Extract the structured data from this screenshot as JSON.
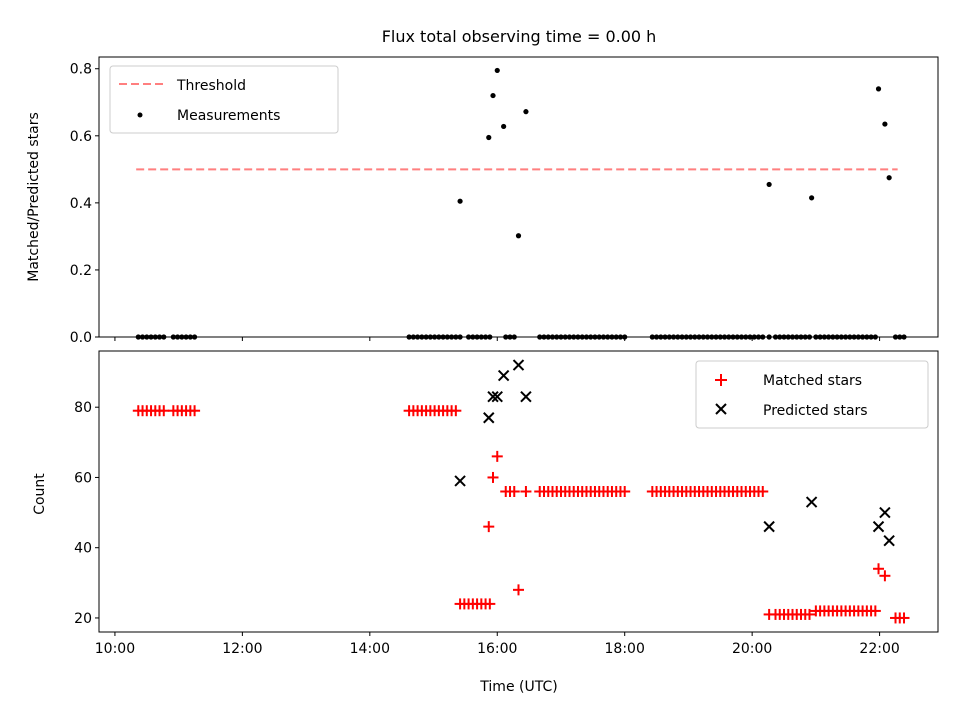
{
  "chart_data": {
    "type": "scatter",
    "title": "Flux total observing time = 0.00 h",
    "xlabel": "Time (UTC)",
    "x_ticks": [
      "10:00",
      "12:00",
      "14:00",
      "16:00",
      "18:00",
      "20:00",
      "22:00"
    ],
    "xlim": [
      "09:45",
      "22:55"
    ],
    "panels": [
      {
        "ylabel": "Matched/Predicted stars",
        "ylim": [
          0,
          0.835
        ],
        "y_ticks": [
          "0.0",
          "0.2",
          "0.4",
          "0.6",
          "0.8"
        ],
        "legend_position": "top-left",
        "series": [
          {
            "name": "Threshold",
            "kind": "line",
            "color": "#ff7f7f",
            "x": [
              "10:20",
              "22:17"
            ],
            "y": [
              0.5,
              0.5
            ]
          },
          {
            "name": "Measurements",
            "kind": "scatter",
            "color": "#000000",
            "x": [
              "10:22",
              "10:26",
              "10:30",
              "10:34",
              "10:38",
              "10:42",
              "10:46",
              "10:55",
              "10:59",
              "11:03",
              "11:07",
              "11:11",
              "11:15",
              "14:37",
              "14:41",
              "14:45",
              "14:49",
              "14:53",
              "14:57",
              "15:01",
              "15:05",
              "15:09",
              "15:13",
              "15:17",
              "15:21",
              "15:25",
              "15:33",
              "15:37",
              "15:41",
              "15:45",
              "15:49",
              "15:53",
              "15:25",
              "15:52",
              "15:56",
              "16:00",
              "16:06",
              "16:20",
              "16:27",
              "16:08",
              "16:12",
              "16:16",
              "16:40",
              "16:44",
              "16:48",
              "16:52",
              "16:56",
              "17:00",
              "17:04",
              "17:08",
              "17:12",
              "17:16",
              "17:20",
              "17:24",
              "17:28",
              "17:32",
              "17:36",
              "17:40",
              "17:44",
              "17:48",
              "17:52",
              "17:56",
              "18:00",
              "18:26",
              "18:30",
              "18:34",
              "18:38",
              "18:42",
              "18:46",
              "18:50",
              "18:54",
              "18:58",
              "19:02",
              "19:06",
              "19:10",
              "19:14",
              "19:18",
              "19:22",
              "19:26",
              "19:30",
              "19:34",
              "19:38",
              "19:42",
              "19:46",
              "19:50",
              "19:54",
              "19:58",
              "20:02",
              "20:06",
              "20:10",
              "20:16",
              "20:22",
              "20:26",
              "20:30",
              "20:34",
              "20:38",
              "20:42",
              "20:46",
              "20:50",
              "20:54",
              "21:00",
              "21:04",
              "21:08",
              "21:12",
              "21:16",
              "21:20",
              "21:24",
              "21:28",
              "21:32",
              "21:36",
              "21:40",
              "21:44",
              "21:48",
              "21:52",
              "21:56",
              "20:16",
              "20:56",
              "21:59",
              "22:05",
              "22:09",
              "22:15",
              "22:19",
              "22:23"
            ],
            "y": [
              0,
              0,
              0,
              0,
              0,
              0,
              0,
              0,
              0,
              0,
              0,
              0,
              0,
              0,
              0,
              0,
              0,
              0,
              0,
              0,
              0,
              0,
              0,
              0,
              0,
              0,
              0,
              0,
              0,
              0,
              0,
              0,
              0.405,
              0.595,
              0.72,
              0.795,
              0.628,
              0.302,
              0.672,
              0,
              0,
              0,
              0,
              0,
              0,
              0,
              0,
              0,
              0,
              0,
              0,
              0,
              0,
              0,
              0,
              0,
              0,
              0,
              0,
              0,
              0,
              0,
              0,
              0,
              0,
              0,
              0,
              0,
              0,
              0,
              0,
              0,
              0,
              0,
              0,
              0,
              0,
              0,
              0,
              0,
              0,
              0,
              0,
              0,
              0,
              0,
              0,
              0,
              0,
              0,
              0,
              0,
              0,
              0,
              0,
              0,
              0,
              0,
              0,
              0,
              0,
              0,
              0,
              0,
              0,
              0,
              0,
              0,
              0,
              0,
              0,
              0,
              0,
              0,
              0,
              0.455,
              0.415,
              0.74,
              0.635,
              0.475,
              0,
              0,
              0
            ]
          }
        ]
      },
      {
        "ylabel": "Count",
        "ylim": [
          16,
          96
        ],
        "y_ticks": [
          "20",
          "40",
          "60",
          "80"
        ],
        "legend_position": "top-right",
        "series": [
          {
            "name": "Matched stars",
            "kind": "plus",
            "color": "#ff0000",
            "x": [
              "10:22",
              "10:26",
              "10:30",
              "10:34",
              "10:38",
              "10:42",
              "10:46",
              "10:55",
              "10:59",
              "11:03",
              "11:07",
              "11:11",
              "11:15",
              "14:37",
              "14:41",
              "14:45",
              "14:49",
              "14:53",
              "14:57",
              "15:01",
              "15:05",
              "15:09",
              "15:13",
              "15:17",
              "15:21",
              "15:25",
              "15:29",
              "15:33",
              "15:37",
              "15:41",
              "15:45",
              "15:49",
              "15:53",
              "15:52",
              "15:56",
              "16:00",
              "16:20",
              "16:08",
              "16:12",
              "16:16",
              "16:27",
              "16:40",
              "16:44",
              "16:48",
              "16:52",
              "16:56",
              "17:00",
              "17:04",
              "17:08",
              "17:12",
              "17:16",
              "17:20",
              "17:24",
              "17:28",
              "17:32",
              "17:36",
              "17:40",
              "17:44",
              "17:48",
              "17:52",
              "17:56",
              "18:00",
              "18:26",
              "18:30",
              "18:34",
              "18:38",
              "18:42",
              "18:46",
              "18:50",
              "18:54",
              "18:58",
              "19:02",
              "19:06",
              "19:10",
              "19:14",
              "19:18",
              "19:22",
              "19:26",
              "19:30",
              "19:34",
              "19:38",
              "19:42",
              "19:46",
              "19:50",
              "19:54",
              "19:58",
              "20:02",
              "20:06",
              "20:10",
              "20:16",
              "20:22",
              "20:26",
              "20:30",
              "20:34",
              "20:38",
              "20:42",
              "20:46",
              "20:50",
              "20:54",
              "21:00",
              "21:04",
              "21:08",
              "21:12",
              "21:16",
              "21:20",
              "21:24",
              "21:28",
              "21:32",
              "21:36",
              "21:40",
              "21:44",
              "21:48",
              "21:52",
              "21:56",
              "21:59",
              "22:05",
              "22:15",
              "22:19",
              "22:23"
            ],
            "y": [
              79,
              79,
              79,
              79,
              79,
              79,
              79,
              79,
              79,
              79,
              79,
              79,
              79,
              79,
              79,
              79,
              79,
              79,
              79,
              79,
              79,
              79,
              79,
              79,
              79,
              24,
              24,
              24,
              24,
              24,
              24,
              24,
              24,
              46,
              60,
              66,
              28,
              56,
              56,
              56,
              56,
              56,
              56,
              56,
              56,
              56,
              56,
              56,
              56,
              56,
              56,
              56,
              56,
              56,
              56,
              56,
              56,
              56,
              56,
              56,
              56,
              56,
              56,
              56,
              56,
              56,
              56,
              56,
              56,
              56,
              56,
              56,
              56,
              56,
              56,
              56,
              56,
              56,
              56,
              56,
              56,
              56,
              56,
              56,
              56,
              56,
              56,
              56,
              56,
              21,
              21,
              21,
              21,
              21,
              21,
              21,
              21,
              21,
              21,
              22,
              22,
              22,
              22,
              22,
              22,
              22,
              22,
              22,
              22,
              22,
              22,
              22,
              22,
              22,
              34,
              32,
              20,
              20,
              20
            ]
          },
          {
            "name": "Predicted stars",
            "kind": "cross",
            "color": "#000000",
            "x": [
              "15:25",
              "15:52",
              "15:56",
              "16:00",
              "16:06",
              "16:20",
              "16:27",
              "20:16",
              "20:56",
              "21:59",
              "22:05",
              "22:09"
            ],
            "y": [
              59,
              77,
              83,
              83,
              89,
              92,
              83,
              46,
              53,
              46,
              50,
              42
            ]
          }
        ]
      }
    ]
  }
}
